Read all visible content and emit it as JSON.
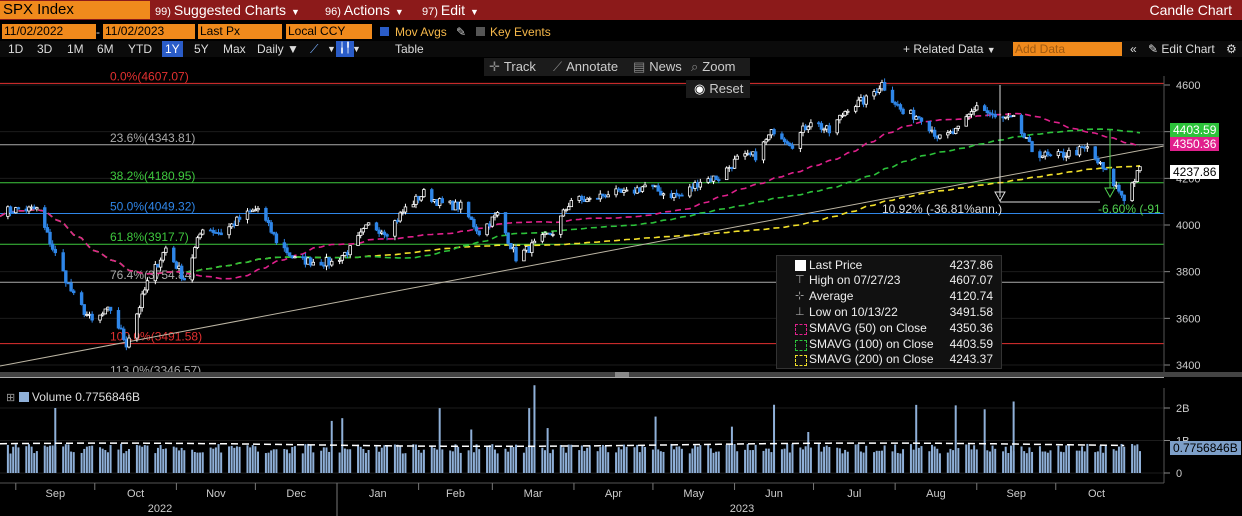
{
  "toolbar": {
    "ticker": "SPX Index",
    "menus": [
      {
        "num": "99)",
        "label": "Suggested Charts"
      },
      {
        "num": "96)",
        "label": "Actions"
      },
      {
        "num": "97)",
        "label": "Edit"
      }
    ],
    "window_title": "Candle Chart"
  },
  "settings": {
    "start_date": "11/02/2022",
    "end_date": "11/02/2023",
    "field": "Last Px",
    "currency": "Local CCY",
    "mov_avgs_label": "Mov Avgs",
    "key_events_label": "Key Events"
  },
  "periods": [
    "1D",
    "3D",
    "1M",
    "6M",
    "YTD",
    "1Y",
    "5Y",
    "Max"
  ],
  "selected_period": "1Y",
  "frequency": "Daily",
  "table_label": "Table",
  "related_data_label": "+ Related Data",
  "add_data_placeholder": "Add Data",
  "edit_chart_label": "Edit Chart",
  "tools": {
    "track": "Track",
    "annotate": "Annotate",
    "news": "News",
    "zoom": "Zoom",
    "reset": "Reset"
  },
  "colors": {
    "candle_up": "#ffffff",
    "candle_down": "#2f86e8",
    "sma50": "#e0208c",
    "sma100": "#2cc23a",
    "sma200": "#f2e02a",
    "accent_orange": "#f08a1c",
    "title_bar": "#8c1a1a"
  },
  "chart_data": {
    "type": "candlestick",
    "title": "SPX Index",
    "x_axis": {
      "months": [
        "Sep",
        "Oct",
        "Nov",
        "Dec",
        "Jan",
        "Feb",
        "Mar",
        "Apr",
        "May",
        "Jun",
        "Jul",
        "Aug",
        "Sep",
        "Oct"
      ],
      "years": [
        "2022",
        "2023"
      ]
    },
    "y_axis": {
      "ticks": [
        3400,
        3600,
        3800,
        4000,
        4200,
        4400,
        4600
      ],
      "range": [
        3380,
        4650
      ]
    },
    "close_series": {
      "dates": [
        "2022-08-26",
        "2022-09-02",
        "2022-09-09",
        "2022-09-16",
        "2022-09-23",
        "2022-09-30",
        "2022-10-07",
        "2022-10-13",
        "2022-10-21",
        "2022-10-28",
        "2022-11-04",
        "2022-11-11",
        "2022-11-18",
        "2022-11-25",
        "2022-12-02",
        "2022-12-09",
        "2022-12-16",
        "2022-12-23",
        "2022-12-30",
        "2023-01-06",
        "2023-01-13",
        "2023-01-20",
        "2023-01-27",
        "2023-02-03",
        "2023-02-10",
        "2023-02-17",
        "2023-02-24",
        "2023-03-03",
        "2023-03-10",
        "2023-03-17",
        "2023-03-24",
        "2023-03-31",
        "2023-04-07",
        "2023-04-14",
        "2023-04-21",
        "2023-04-28",
        "2023-05-05",
        "2023-05-12",
        "2023-05-19",
        "2023-05-26",
        "2023-06-02",
        "2023-06-09",
        "2023-06-16",
        "2023-06-23",
        "2023-06-30",
        "2023-07-07",
        "2023-07-14",
        "2023-07-21",
        "2023-07-27",
        "2023-08-04",
        "2023-08-11",
        "2023-08-18",
        "2023-08-25",
        "2023-09-01",
        "2023-09-08",
        "2023-09-15",
        "2023-09-22",
        "2023-09-29",
        "2023-10-06",
        "2023-10-13",
        "2023-10-20",
        "2023-10-27",
        "2023-11-02"
      ],
      "values": [
        4057,
        4067,
        4067,
        3873,
        3693,
        3585,
        3639,
        3491,
        3752,
        3901,
        3770,
        3992,
        3965,
        4026,
        4071,
        3934,
        3852,
        3844,
        3839,
        3895,
        3999,
        3972,
        4070,
        4136,
        4090,
        4079,
        3970,
        4045,
        3861,
        3916,
        3970,
        4109,
        4105,
        4137,
        4133,
        4169,
        4136,
        4124,
        4191,
        4205,
        4282,
        4298,
        4409,
        4348,
        4450,
        4398,
        4505,
        4536,
        4607,
        4478,
        4464,
        4369,
        4405,
        4515,
        4457,
        4450,
        4320,
        4288,
        4308,
        4327,
        4224,
        4117,
        4237
      ]
    },
    "moving_averages": [
      {
        "name": "SMAVG (50) on Close",
        "value": 4350.36
      },
      {
        "name": "SMAVG (100) on Close",
        "value": 4403.59
      },
      {
        "name": "SMAVG (200) on Close",
        "value": 4243.37
      }
    ],
    "fibonacci_levels": [
      {
        "label": "0.0%(4607.07)",
        "value": 4607.07
      },
      {
        "label": "23.6%(4343.81)",
        "value": 4343.81
      },
      {
        "label": "38.2%(4180.95)",
        "value": 4180.95
      },
      {
        "label": "50.0%(4049.32)",
        "value": 4049.32
      },
      {
        "label": "61.8%(3917.7)",
        "value": 3917.7
      },
      {
        "label": "76.4%(3754.84)",
        "value": 3754.84
      },
      {
        "label": "100.0%(3491.58)",
        "value": 3491.58
      },
      {
        "label": "113.0%(3346.57)",
        "value": 3346.57
      }
    ],
    "annotations": [
      {
        "text": "10.92% (-36.81%ann.)"
      },
      {
        "text": "-6.60% (-91"
      }
    ],
    "price_tags": [
      {
        "text": "4403.59",
        "value": 4403.59
      },
      {
        "text": "4350.36",
        "value": 4350.36
      },
      {
        "text": "4237.86",
        "value": 4237.86
      }
    ],
    "legend": {
      "last_price_label": "Last Price",
      "last_price": "4237.86",
      "high_label": "High on 07/27/23",
      "high": "4607.07",
      "average_label": "Average",
      "average": "4120.74",
      "low_label": "Low on 10/13/22",
      "low": "3491.58"
    },
    "volume": {
      "label": "Volume 0.7756846B",
      "tag": "0.7756846B",
      "y_ticks": [
        "2B",
        "1B",
        "0"
      ],
      "typical_billion": 0.75,
      "last_billion": 0.7756846,
      "spike_billion": 2.7
    }
  }
}
